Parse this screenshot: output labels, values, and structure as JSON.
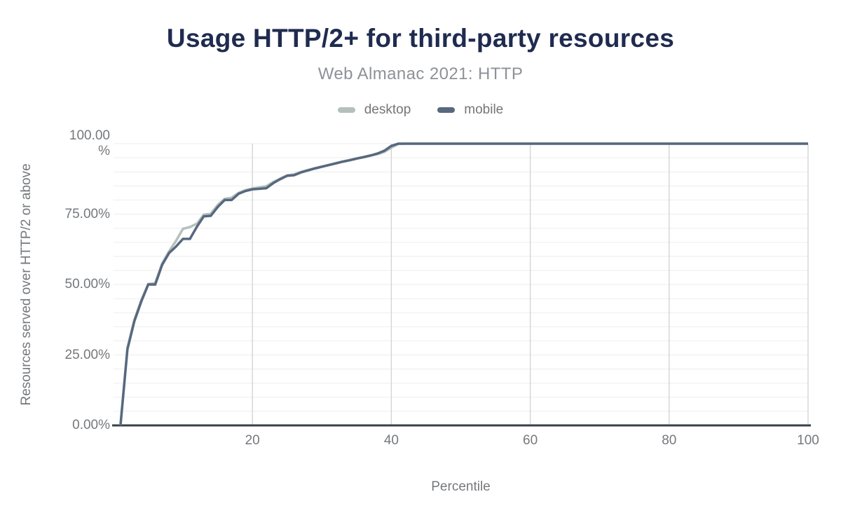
{
  "header": {
    "title": "Usage HTTP/2+ for third-party resources",
    "subtitle": "Web Almanac 2021: HTTP"
  },
  "legend": {
    "items": [
      {
        "name": "desktop",
        "label": "desktop",
        "color": "#b5c0bc"
      },
      {
        "name": "mobile",
        "label": "mobile",
        "color": "#57687f"
      }
    ]
  },
  "axes": {
    "y_title": "Resources served over HTTP/2 or above",
    "x_title": "Percentile",
    "y_ticks": [
      {
        "value": 0,
        "label": "0.00%"
      },
      {
        "value": 25,
        "label": "25.00%"
      },
      {
        "value": 50,
        "label": "50.00%"
      },
      {
        "value": 75,
        "label": "75.00%"
      },
      {
        "value": 100,
        "label": "100.00\n%"
      }
    ],
    "x_ticks": [
      {
        "value": 20,
        "label": "20"
      },
      {
        "value": 40,
        "label": "40"
      },
      {
        "value": 60,
        "label": "60"
      },
      {
        "value": 80,
        "label": "80"
      },
      {
        "value": 100,
        "label": "100"
      }
    ]
  },
  "colors": {
    "title": "#1f2b4f",
    "subtitle": "#8d9298",
    "axis_text": "#75787c",
    "legend_text": "#757575",
    "grid_minor": "#ededed",
    "grid_major": "#d2d2d2",
    "baseline": "#37414b",
    "desktop": "#b5c0bc",
    "mobile": "#57687f"
  },
  "chart_data": {
    "type": "line",
    "title": "Usage HTTP/2+ for third-party resources",
    "subtitle": "Web Almanac 2021: HTTP",
    "xlabel": "Percentile",
    "ylabel": "Resources served over HTTP/2 or above",
    "xlim": [
      0,
      100
    ],
    "ylim": [
      0,
      100
    ],
    "legend_position": "top",
    "grid": {
      "horizontal_every": 5,
      "vertical_at": [
        20,
        40,
        60,
        80,
        100
      ]
    },
    "x": [
      1,
      2,
      3,
      4,
      5,
      6,
      7,
      8,
      9,
      10,
      11,
      12,
      13,
      14,
      15,
      16,
      17,
      18,
      19,
      20,
      21,
      22,
      23,
      24,
      25,
      26,
      27,
      28,
      29,
      30,
      31,
      32,
      33,
      34,
      35,
      36,
      37,
      38,
      39,
      40,
      41,
      42,
      100
    ],
    "series": [
      {
        "name": "desktop",
        "color": "#b5c0bc",
        "values": [
          0,
          27.5,
          37.5,
          44.5,
          50.2,
          50.5,
          57.5,
          61.8,
          65.5,
          69.8,
          70.4,
          71.6,
          74.8,
          75.1,
          78.2,
          80.4,
          80.8,
          82.5,
          83.5,
          84.1,
          84.5,
          84.9,
          86.4,
          87.6,
          88.8,
          89.1,
          90,
          90.7,
          91.3,
          91.9,
          92.5,
          93.1,
          93.7,
          94.2,
          94.8,
          95.3,
          95.8,
          96.3,
          97.1,
          98.6,
          99.9,
          100,
          100
        ]
      },
      {
        "name": "mobile",
        "color": "#57687f",
        "values": [
          0,
          27,
          37,
          44,
          50,
          50,
          57,
          61.2,
          63.5,
          66.2,
          66.2,
          70.5,
          74.2,
          74.4,
          77.5,
          80,
          80,
          82.2,
          83.2,
          83.8,
          84,
          84.2,
          86,
          87.4,
          88.6,
          88.8,
          89.8,
          90.5,
          91.2,
          91.8,
          92.4,
          93,
          93.6,
          94.1,
          94.7,
          95.2,
          95.8,
          96.5,
          97.5,
          99.2,
          100,
          100,
          100
        ]
      }
    ]
  }
}
